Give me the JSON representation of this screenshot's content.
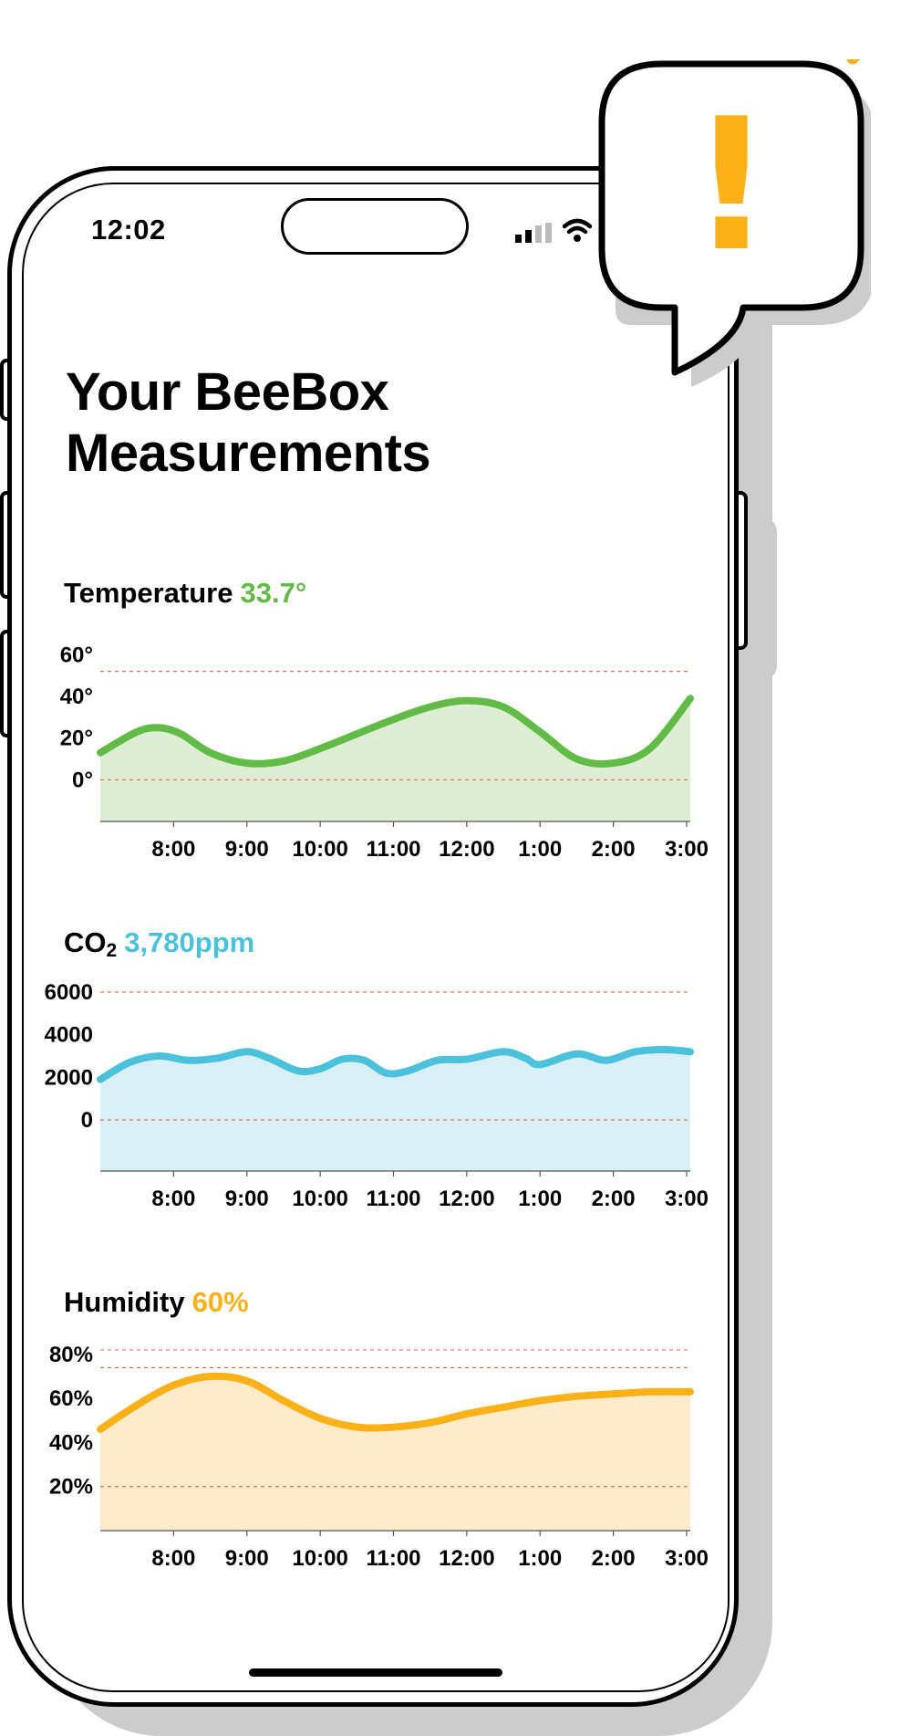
{
  "status_bar": {
    "time": "12:02",
    "signal_icon": "cellular-signal-icon",
    "wifi_icon": "wifi-icon"
  },
  "page": {
    "title_line1": "Your BeeBox",
    "title_line2": "Measurements"
  },
  "alert": {
    "icon": "exclamation-icon",
    "symbol": "!",
    "color": "#fbb117"
  },
  "colors": {
    "temperature": "#62bb47",
    "temperature_fill": "#ddeed4",
    "co2": "#4bc1dc",
    "co2_fill": "#d9f0f6",
    "humidity": "#fbb117",
    "humidity_fill": "#fdebcc",
    "limit_line": "#e8734a"
  },
  "chart_data": [
    {
      "type": "area",
      "name": "Temperature",
      "title_label": "Temperature",
      "current_value": "33.7°",
      "ytick_labels": [
        "60°",
        "40°",
        "20°",
        "0°"
      ],
      "yticks": [
        60,
        40,
        20,
        0
      ],
      "ylim": [
        -20,
        72
      ],
      "xtick_labels": [
        "8:00",
        "9:00",
        "10:00",
        "11:00",
        "12:00",
        "1:00",
        "2:00",
        "3:00"
      ],
      "xlim": [
        7.0,
        15.05
      ],
      "reference_lines": [
        52,
        0
      ],
      "x": [
        7.0,
        7.5,
        7.8,
        8.1,
        8.5,
        9.0,
        9.5,
        10.0,
        10.5,
        11.0,
        11.5,
        12.0,
        12.5,
        13.0,
        13.5,
        14.0,
        14.5,
        15.05
      ],
      "y": [
        13,
        23,
        25,
        22,
        13,
        8,
        9,
        15,
        22,
        29,
        35,
        38,
        35,
        23,
        10,
        8,
        15,
        39
      ]
    },
    {
      "type": "area",
      "name": "CO2",
      "title_label": "CO",
      "title_sub": "2",
      "current_value": "3,780ppm",
      "ytick_labels": [
        "6000",
        "4000",
        "2000",
        "0"
      ],
      "yticks": [
        6000,
        4000,
        2000,
        0
      ],
      "ylim": [
        -2400,
        6600
      ],
      "xtick_labels": [
        "8:00",
        "9:00",
        "10:00",
        "11:00",
        "12:00",
        "1:00",
        "2:00",
        "3:00"
      ],
      "xlim": [
        7.0,
        15.05
      ],
      "reference_lines": [
        6000,
        0
      ],
      "x": [
        7.0,
        7.4,
        7.8,
        8.2,
        8.6,
        9.0,
        9.3,
        9.7,
        10.0,
        10.3,
        10.6,
        10.9,
        11.2,
        11.6,
        12.0,
        12.5,
        12.8,
        13.0,
        13.5,
        13.9,
        14.3,
        14.7,
        15.05
      ],
      "y": [
        1900,
        2700,
        3000,
        2800,
        2900,
        3200,
        2900,
        2300,
        2400,
        2850,
        2800,
        2200,
        2300,
        2800,
        2850,
        3200,
        2900,
        2600,
        3100,
        2800,
        3200,
        3300,
        3200
      ]
    },
    {
      "type": "area",
      "name": "Humidity",
      "title_label": "Humidity",
      "current_value": "60%",
      "ytick_labels": [
        "80%",
        "60%",
        "40%",
        "20%"
      ],
      "yticks": [
        80,
        60,
        40,
        20
      ],
      "ylim": [
        0,
        87
      ],
      "xtick_labels": [
        "8:00",
        "9:00",
        "10:00",
        "11:00",
        "12:00",
        "1:00",
        "2:00",
        "3:00"
      ],
      "xlim": [
        7.0,
        15.05
      ],
      "reference_lines": [
        82,
        74,
        20
      ],
      "x": [
        7.0,
        7.5,
        8.0,
        8.5,
        9.0,
        9.5,
        10.0,
        10.5,
        11.0,
        11.5,
        12.0,
        12.5,
        13.0,
        13.5,
        14.0,
        14.5,
        15.05
      ],
      "y": [
        46,
        57,
        66,
        70,
        68,
        59,
        51,
        47,
        47,
        49,
        53,
        56,
        59,
        61,
        62,
        63,
        63
      ]
    }
  ]
}
